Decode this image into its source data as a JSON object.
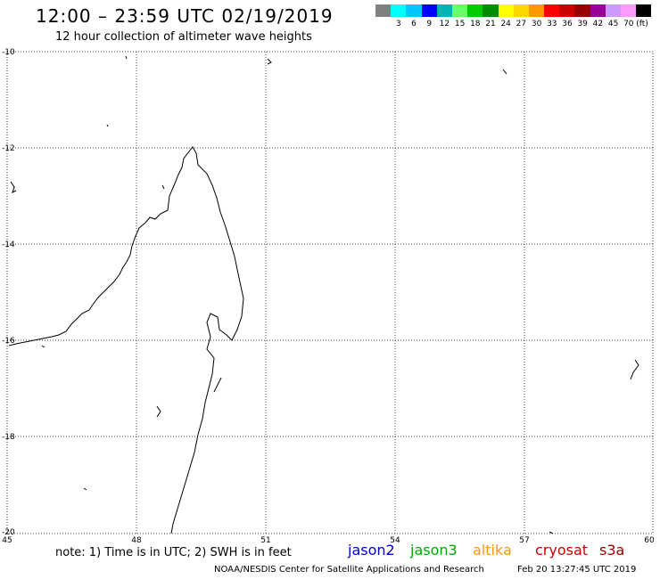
{
  "header": {
    "title": "12:00 – 23:59 UTC 02/19/2019",
    "subtitle": "12 hour collection of altimeter wave heights"
  },
  "legend": {
    "unit": "(ft)",
    "swatches": [
      {
        "color": "#808080",
        "label": ""
      },
      {
        "color": "#00ffff",
        "label": "3"
      },
      {
        "color": "#00c8ff",
        "label": "6"
      },
      {
        "color": "#0000ff",
        "label": "9"
      },
      {
        "color": "#00b4b4",
        "label": "12"
      },
      {
        "color": "#66ff66",
        "label": "15"
      },
      {
        "color": "#00cc00",
        "label": "18"
      },
      {
        "color": "#008c00",
        "label": "21"
      },
      {
        "color": "#ffff00",
        "label": "24"
      },
      {
        "color": "#ffd700",
        "label": "27"
      },
      {
        "color": "#ff9900",
        "label": "30"
      },
      {
        "color": "#ff0000",
        "label": "33"
      },
      {
        "color": "#cc0000",
        "label": "36"
      },
      {
        "color": "#990000",
        "label": "39"
      },
      {
        "color": "#990099",
        "label": "42"
      },
      {
        "color": "#cc99ff",
        "label": "45"
      },
      {
        "color": "#ff99ff",
        "label": "70"
      },
      {
        "color": "#000000",
        "label": ""
      }
    ]
  },
  "map": {
    "lat_ticks": [
      "-10",
      "-12",
      "-14",
      "-16",
      "-18",
      "-20"
    ],
    "lon_ticks": [
      "45",
      "48",
      "51",
      "54",
      "57",
      "60"
    ]
  },
  "footer": {
    "note": "note: 1) Time is in UTC; 2) SWH is in feet",
    "satellites": [
      {
        "name": "jason2",
        "color": "#0000cc"
      },
      {
        "name": "jason3",
        "color": "#00aa00"
      },
      {
        "name": "altika",
        "color": "#ff9900"
      },
      {
        "name": "cryosat",
        "color": "#cc0000"
      },
      {
        "name": "s3a",
        "color": "#990000"
      }
    ],
    "credit": "NOAA/NESDIS Center for Satellite Applications and Research",
    "timestamp": "Feb 20 13:27:45 UTC 2019"
  }
}
